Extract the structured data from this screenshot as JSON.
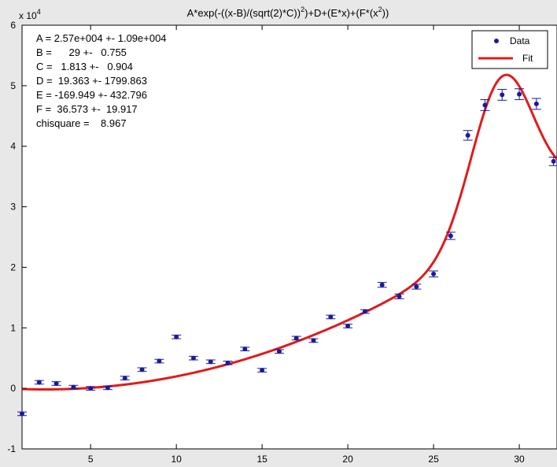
{
  "chart_data": {
    "type": "scatter",
    "title": "A*exp(-((x-B)/(sqrt(2)*C))²)+D+(E*x)+(F*(x²))",
    "title_main": "A*exp(-((x-B)/(sqrt(2)*C))",
    "title_sup1": "2",
    "title_mid": ")+D+(E*x)+(F*(x",
    "title_sup2": "2",
    "title_end": "))",
    "xlabel": "",
    "ylabel": "",
    "xlim": [
      1,
      32.2
    ],
    "ylim": [
      -1,
      6
    ],
    "y_exponent_label": "x 10",
    "y_exponent_power": "4",
    "xticks": [
      "5",
      "10",
      "15",
      "20",
      "25",
      "30"
    ],
    "yticks": [
      "-1",
      "0",
      "1",
      "2",
      "3",
      "4",
      "5",
      "6"
    ],
    "grid": false,
    "legend_position": "top-right",
    "params": [
      "A = 2.57e+004 +- 1.09e+004",
      "B =      29 +-   0.755",
      "C =   1.813 +-   0.904",
      "D =  19.363 +- 1799.863",
      "E = -169.949 +- 432.796",
      "F =  36.573 +-  19.917",
      "chisquare =    8.967"
    ],
    "colors": {
      "data": "#1a1a9e",
      "fit": "#e01b1b",
      "axes_background": "#ffffff",
      "figure_background": "#e8e8e8"
    },
    "series": [
      {
        "name": "Data",
        "style": "markers with error bars",
        "x": [
          1,
          2,
          3,
          4,
          5,
          6,
          7,
          8,
          9,
          10,
          11,
          12,
          13,
          14,
          15,
          16,
          17,
          18,
          19,
          20,
          21,
          22,
          23,
          24,
          25,
          26,
          27,
          28,
          29,
          30,
          31,
          32
        ],
        "y": [
          -0.42,
          0.1,
          0.08,
          0.02,
          0.0,
          0.01,
          0.17,
          0.31,
          0.45,
          0.85,
          0.5,
          0.44,
          0.42,
          0.65,
          0.3,
          0.61,
          0.83,
          0.79,
          1.18,
          1.03,
          1.27,
          1.71,
          1.52,
          1.68,
          1.89,
          2.52,
          4.18,
          4.68,
          4.85,
          4.86,
          4.7,
          3.75
        ],
        "error": [
          0.03,
          0.03,
          0.03,
          0.03,
          0.03,
          0.03,
          0.03,
          0.03,
          0.03,
          0.03,
          0.03,
          0.03,
          0.03,
          0.03,
          0.03,
          0.03,
          0.03,
          0.03,
          0.03,
          0.03,
          0.03,
          0.04,
          0.04,
          0.04,
          0.05,
          0.06,
          0.08,
          0.09,
          0.09,
          0.09,
          0.09,
          0.07
        ]
      },
      {
        "name": "Fit",
        "style": "line",
        "function": "A*exp(-((x-B)/(sqrt(2)*C))^2)+D+E*x+F*x^2",
        "parameters": {
          "A": 25700,
          "B": 29,
          "C": 1.813,
          "D": 19.363,
          "E": -169.949,
          "F": 36.573
        },
        "x_range": [
          1,
          32.2
        ]
      }
    ]
  }
}
